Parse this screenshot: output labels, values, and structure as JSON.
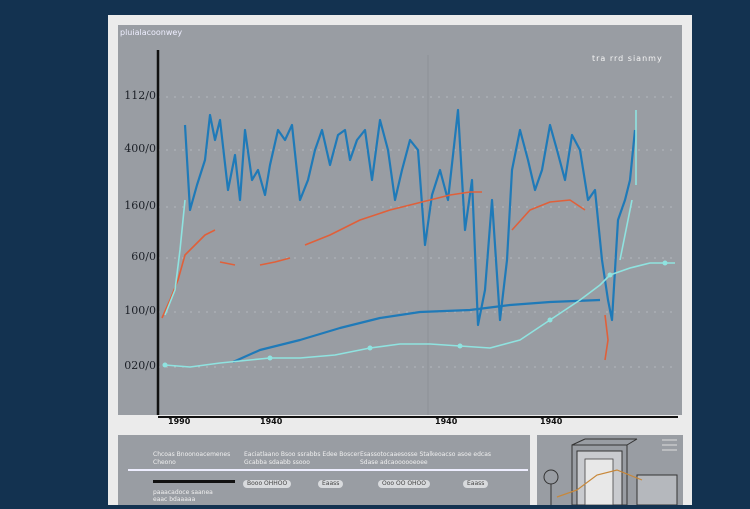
{
  "chart_data": {
    "type": "line",
    "title": "",
    "corner_label": "pluialacoonwey",
    "legend_text": "tra rrd sianmy",
    "xlabel": "",
    "ylabel": "",
    "xlim": [
      0,
      520
    ],
    "ylim": [
      0,
      365
    ],
    "grid": true,
    "x_ticks": [
      {
        "value": 18,
        "label": "1990"
      },
      {
        "value": 110,
        "label": "1940"
      },
      {
        "value": 285,
        "label": "1940"
      },
      {
        "value": 390,
        "label": "1940"
      }
    ],
    "y_ticks": [
      {
        "value": 48,
        "label": "020/0"
      },
      {
        "value": 103,
        "label": "100/0"
      },
      {
        "value": 157,
        "label": "60/0"
      },
      {
        "value": 208,
        "label": "160/0"
      },
      {
        "value": 265,
        "label": "400/0"
      },
      {
        "value": 318,
        "label": "112/0"
      }
    ],
    "colors": {
      "blue": "#1f7ab8",
      "red": "#e0603a",
      "teal": "#8fe3e0",
      "axis": "#111111"
    },
    "series": [
      {
        "color": "blue",
        "segments": [
          [
            [
              27,
              290
            ],
            [
              32,
              205
            ],
            [
              39,
              230
            ],
            [
              47,
              255
            ],
            [
              52,
              300
            ],
            [
              57,
              275
            ],
            [
              62,
              295
            ],
            [
              70,
              225
            ],
            [
              77,
              260
            ],
            [
              82,
              215
            ],
            [
              87,
              285
            ],
            [
              94,
              235
            ],
            [
              100,
              245
            ],
            [
              107,
              220
            ],
            [
              112,
              250
            ],
            [
              120,
              285
            ],
            [
              127,
              275
            ],
            [
              134,
              290
            ],
            [
              142,
              215
            ],
            [
              150,
              235
            ],
            [
              157,
              265
            ],
            [
              164,
              285
            ],
            [
              172,
              250
            ],
            [
              180,
              280
            ],
            [
              187,
              285
            ],
            [
              192,
              255
            ],
            [
              199,
              275
            ],
            [
              207,
              285
            ],
            [
              214,
              235
            ],
            [
              222,
              295
            ],
            [
              230,
              265
            ],
            [
              237,
              215
            ],
            [
              244,
              245
            ],
            [
              252,
              275
            ],
            [
              260,
              265
            ],
            [
              267,
              170
            ],
            [
              274,
              220
            ],
            [
              282,
              245
            ],
            [
              290,
              215
            ],
            [
              300,
              305
            ],
            [
              307,
              185
            ],
            [
              314,
              235
            ],
            [
              320,
              90
            ],
            [
              327,
              125
            ],
            [
              334,
              215
            ],
            [
              342,
              95
            ],
            [
              349,
              155
            ],
            [
              354,
              245
            ],
            [
              362,
              285
            ],
            [
              370,
              255
            ],
            [
              377,
              225
            ],
            [
              384,
              245
            ],
            [
              392,
              290
            ],
            [
              399,
              265
            ],
            [
              407,
              235
            ],
            [
              414,
              280
            ],
            [
              422,
              265
            ],
            [
              430,
              215
            ],
            [
              437,
              225
            ],
            [
              444,
              155
            ],
            [
              450,
              115
            ],
            [
              454,
              95
            ],
            [
              460,
              195
            ],
            [
              467,
              215
            ],
            [
              472,
              235
            ],
            [
              477,
              285
            ]
          ]
        ]
      },
      {
        "color": "blue",
        "segments": [
          [
            [
              75,
              53
            ],
            [
              102,
              65
            ],
            [
              142,
              75
            ],
            [
              182,
              87
            ],
            [
              222,
              97
            ],
            [
              262,
              103
            ],
            [
              312,
              105
            ],
            [
              352,
              110
            ],
            [
              392,
              113
            ],
            [
              442,
              115
            ]
          ]
        ]
      },
      {
        "color": "red",
        "segments": [
          [
            [
              4,
              97
            ],
            [
              12,
              115
            ],
            [
              20,
              135
            ],
            [
              27,
              160
            ],
            [
              37,
              170
            ],
            [
              47,
              180
            ],
            [
              57,
              185
            ]
          ],
          [
            [
              62,
              153
            ],
            [
              77,
              150
            ]
          ],
          [
            [
              102,
              150
            ],
            [
              117,
              153
            ],
            [
              132,
              157
            ]
          ],
          [
            [
              147,
              170
            ],
            [
              172,
              180
            ],
            [
              202,
              195
            ],
            [
              232,
              205
            ],
            [
              252,
              210
            ],
            [
              272,
              215
            ],
            [
              292,
              220
            ],
            [
              312,
              223
            ],
            [
              324,
              223
            ]
          ],
          [
            [
              354,
              185
            ],
            [
              372,
              205
            ],
            [
              392,
              213
            ],
            [
              412,
              215
            ],
            [
              427,
              205
            ]
          ],
          [
            [
              447,
              100
            ],
            [
              450,
              75
            ],
            [
              447,
              55
            ]
          ]
        ]
      },
      {
        "color": "teal",
        "markers": true,
        "segments": [
          [
            [
              7,
              50
            ],
            [
              32,
              48
            ],
            [
              62,
              52
            ],
            [
              112,
              57
            ],
            [
              142,
              57
            ],
            [
              177,
              60
            ],
            [
              212,
              67
            ],
            [
              242,
              71
            ],
            [
              272,
              71
            ],
            [
              302,
              69
            ],
            [
              332,
              67
            ],
            [
              362,
              75
            ],
            [
              392,
              95
            ],
            [
              422,
              115
            ],
            [
              442,
              130
            ],
            [
              452,
              140
            ],
            [
              472,
              147
            ],
            [
              492,
              152
            ],
            [
              507,
              152
            ],
            [
              517,
              152
            ]
          ]
        ]
      },
      {
        "color": "teal",
        "segments": [
          [
            [
              7,
              100
            ],
            [
              17,
              125
            ],
            [
              22,
              165
            ],
            [
              27,
              215
            ]
          ],
          [
            [
              478,
              305
            ],
            [
              478,
              230
            ]
          ],
          [
            [
              474,
              215
            ],
            [
              462,
              155
            ]
          ]
        ]
      }
    ]
  },
  "bottom_panel": {
    "texts": [
      "Chcoas Bnoonoacemenes",
      "Cheono",
      "Eaciatlaano Bsoo ssrabbs Edee Boscer",
      "Gcabba sdaabb ssooo",
      "Esassotocaaesosse Stalkeoacso asoe edcas",
      "Sdase adcaoooooeoee",
      "paaacadoce saanea",
      "eaac bdaaaaa"
    ],
    "pills": [
      "Booo OHHOO",
      "Eaass",
      "Ooo OO OHOO",
      "Eaass"
    ]
  }
}
